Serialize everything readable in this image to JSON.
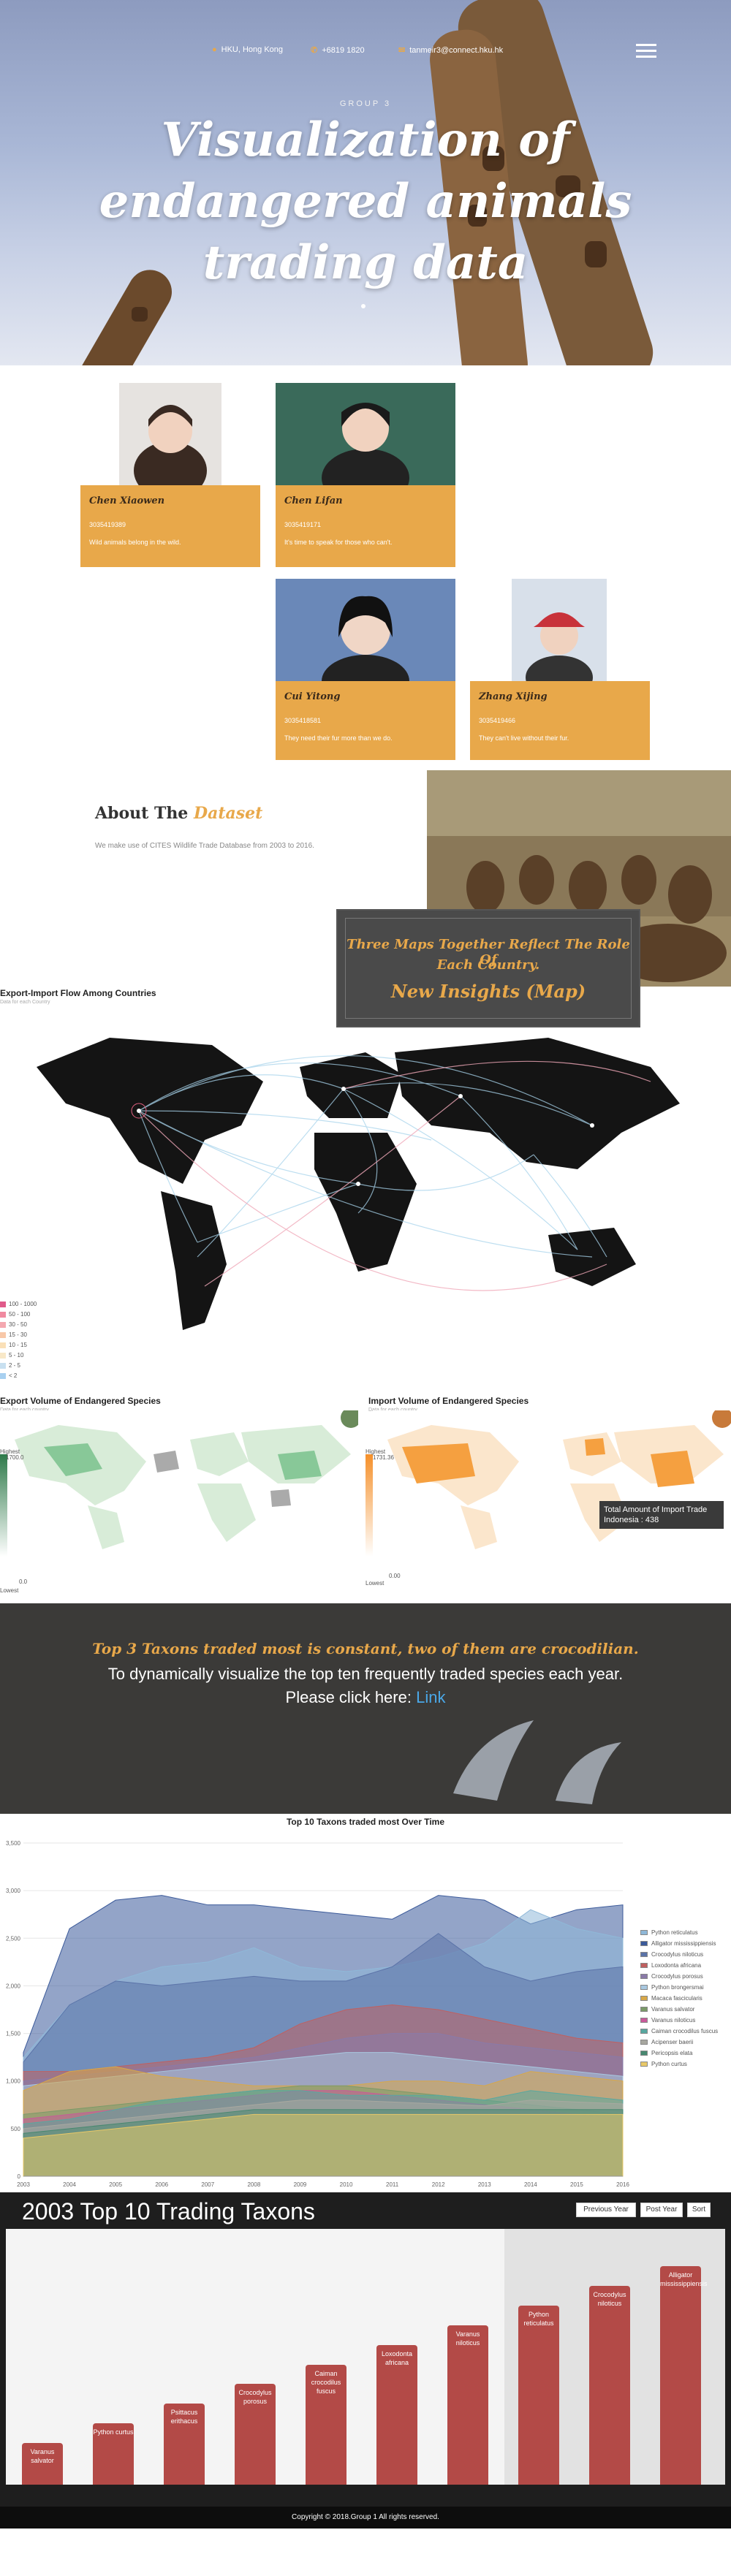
{
  "header": {
    "location": "HKU, Hong Kong",
    "phone": "+6819 1820",
    "email": "tanmeir3@connect.hku.hk",
    "kicker": "GROUP 3",
    "title_line1": "Visualization of",
    "title_line2": "endangered animals",
    "title_line3": "trading data"
  },
  "team": [
    {
      "name": "Chen Xiaowen",
      "id": "3035419389",
      "quote": "Wild animals belong in the wild."
    },
    {
      "name": "Chen Lifan",
      "id": "3035419171",
      "quote": "It's time to speak for those who can't."
    },
    {
      "name": "Cui Yitong",
      "id": "3035418581",
      "quote": "They need their fur more than we do."
    },
    {
      "name": "Zhang Xijing",
      "id": "3035419466",
      "quote": "They can't live without their fur."
    }
  ],
  "dataset": {
    "title_prefix": "About The",
    "title_highlight": "Dataset",
    "text": "We make use of CITES Wildlife Trade Database from 2003 to 2016.",
    "maps_line1": "Three Maps Together Reflect The Role Of",
    "maps_line2": "Each Country.",
    "maps_line3": "New Insights (Map)"
  },
  "flow_map": {
    "title": "Export-Import Flow Among Countries",
    "subtitle": "Data for each Country",
    "legend": [
      "100 - 1000",
      "50 - 100",
      "30 - 50",
      "15 - 30",
      "10 - 15",
      "5 - 10",
      "2 - 5",
      "< 2"
    ],
    "legend_colors": [
      "#e05a8a",
      "#f08aa0",
      "#f4a8b0",
      "#f8c8a8",
      "#fae0b8",
      "#f8e8c8",
      "#c8e0f0",
      "#a8d0f0"
    ]
  },
  "export_map": {
    "title": "Export Volume of Endangered Species",
    "subtitle": "Data for each country",
    "scale_high": "Highest",
    "scale_value": "1700.0",
    "scale_zero": "0.0",
    "scale_low": "Lowest"
  },
  "import_map": {
    "title": "Import Volume of Endangered Species",
    "subtitle": "Data for each country",
    "scale_high": "Highest",
    "scale_value": "1731.36",
    "scale_zero": "0.00",
    "scale_low": "Lowest",
    "tooltip_line1": "Total Amount of Import Trade",
    "tooltip_line2": "Indonesia : 438"
  },
  "taxon_banner": {
    "title": "Top 3 Taxons traded most is constant, two of them are crocodilian.",
    "line1": "To dynamically visualize the top ten frequently traded species each year.",
    "line2_prefix": "Please click here:",
    "link": "Link"
  },
  "area_chart": {
    "title": "Top 10 Taxons traded most Over Time"
  },
  "chart_data": [
    {
      "type": "area",
      "title": "Top 10 Taxons traded most Over Time",
      "x": [
        "2003",
        "2004",
        "2005",
        "2006",
        "2007",
        "2008",
        "2009",
        "2010",
        "2011",
        "2012",
        "2013",
        "2014",
        "2015",
        "2016"
      ],
      "ylim": [
        0,
        3500
      ],
      "yticks": [
        "0",
        "500",
        "1,000",
        "1,500",
        "2,000",
        "2,500",
        "3,000",
        "3,500"
      ],
      "legend_placement": "right",
      "series": [
        {
          "name": "Python reticulatus",
          "color": "#8fb8d8",
          "values": [
            1250,
            1800,
            2050,
            2200,
            2250,
            2400,
            2200,
            2150,
            2200,
            2300,
            2450,
            2800,
            2600,
            2500
          ]
        },
        {
          "name": "Alligator mississippiensis",
          "color": "#3b5a9a",
          "values": [
            1300,
            2600,
            2900,
            2950,
            2850,
            2850,
            2800,
            2750,
            2700,
            2950,
            2900,
            2650,
            2800,
            2850
          ]
        },
        {
          "name": "Crocodylus niloticus",
          "color": "#5b73a8",
          "values": [
            1200,
            1800,
            2050,
            2000,
            2050,
            2100,
            2050,
            2050,
            2200,
            2550,
            2200,
            2050,
            2150,
            2200
          ]
        },
        {
          "name": "Loxodonta africana",
          "color": "#c06060",
          "values": [
            1100,
            1100,
            1150,
            1200,
            1250,
            1350,
            1600,
            1750,
            1800,
            1750,
            1650,
            1550,
            1450,
            1400
          ]
        },
        {
          "name": "Crocodylus porosus",
          "color": "#8a7aa8",
          "values": [
            1000,
            1050,
            1100,
            1150,
            1200,
            1250,
            1350,
            1450,
            1500,
            1500,
            1400,
            1350,
            1300,
            1250
          ]
        },
        {
          "name": "Python brongersmai",
          "color": "#a8c8e0",
          "values": [
            950,
            1000,
            1050,
            1100,
            1150,
            1200,
            1250,
            1300,
            1300,
            1250,
            1200,
            1150,
            1100,
            1050
          ]
        },
        {
          "name": "Macaca fascicularis",
          "color": "#d8a848",
          "values": [
            900,
            1100,
            1150,
            1050,
            1000,
            950,
            950,
            950,
            1000,
            1000,
            950,
            1100,
            1050,
            1000
          ]
        },
        {
          "name": "Varanus salvator",
          "color": "#7a9a68",
          "values": [
            650,
            700,
            750,
            800,
            850,
            900,
            950,
            950,
            900,
            850,
            800,
            750,
            700,
            650
          ]
        },
        {
          "name": "Varanus niloticus",
          "color": "#c85a9a",
          "values": [
            600,
            650,
            700,
            750,
            800,
            850,
            900,
            900,
            850,
            800,
            750,
            700,
            650,
            600
          ]
        },
        {
          "name": "Caiman crocodilus fuscus",
          "color": "#58a8a0",
          "values": [
            550,
            600,
            700,
            800,
            850,
            900,
            900,
            850,
            850,
            850,
            800,
            900,
            850,
            800
          ]
        },
        {
          "name": "Acipenser baerii",
          "color": "#a8a8a0",
          "values": [
            500,
            550,
            600,
            650,
            700,
            750,
            800,
            800,
            780,
            760,
            740,
            800,
            780,
            760
          ]
        },
        {
          "name": "Pericopsis elata",
          "color": "#488870",
          "values": [
            450,
            500,
            550,
            600,
            650,
            700,
            700,
            700,
            700,
            700,
            700,
            700,
            700,
            700
          ]
        },
        {
          "name": "Python curtus",
          "color": "#e8c868",
          "values": [
            400,
            450,
            500,
            550,
            600,
            650,
            650,
            650,
            650,
            650,
            650,
            650,
            650,
            650
          ]
        }
      ]
    },
    {
      "type": "bar",
      "title": "2003 Top 10 Trading Taxons",
      "categories": [
        "Varanus salvator",
        "Python curtus",
        "Psittacus erithacus",
        "Crocodylus porosus",
        "Caiman crocodilus fuscus",
        "Loxodonta africana",
        "Varanus niloticus",
        "Python reticulatus",
        "Crocodylus niloticus",
        "Alligator mississippiensis"
      ],
      "values": [
        1,
        2,
        3,
        4,
        5,
        6,
        7,
        8,
        9,
        10
      ]
    }
  ],
  "bar_section": {
    "title": "2003 Top 10 Trading Taxons",
    "prev": "Previous Year",
    "post": "Post Year",
    "sort": "Sort"
  },
  "footer": {
    "text": "Copyright © 2018.Group 1 All rights reserved."
  }
}
